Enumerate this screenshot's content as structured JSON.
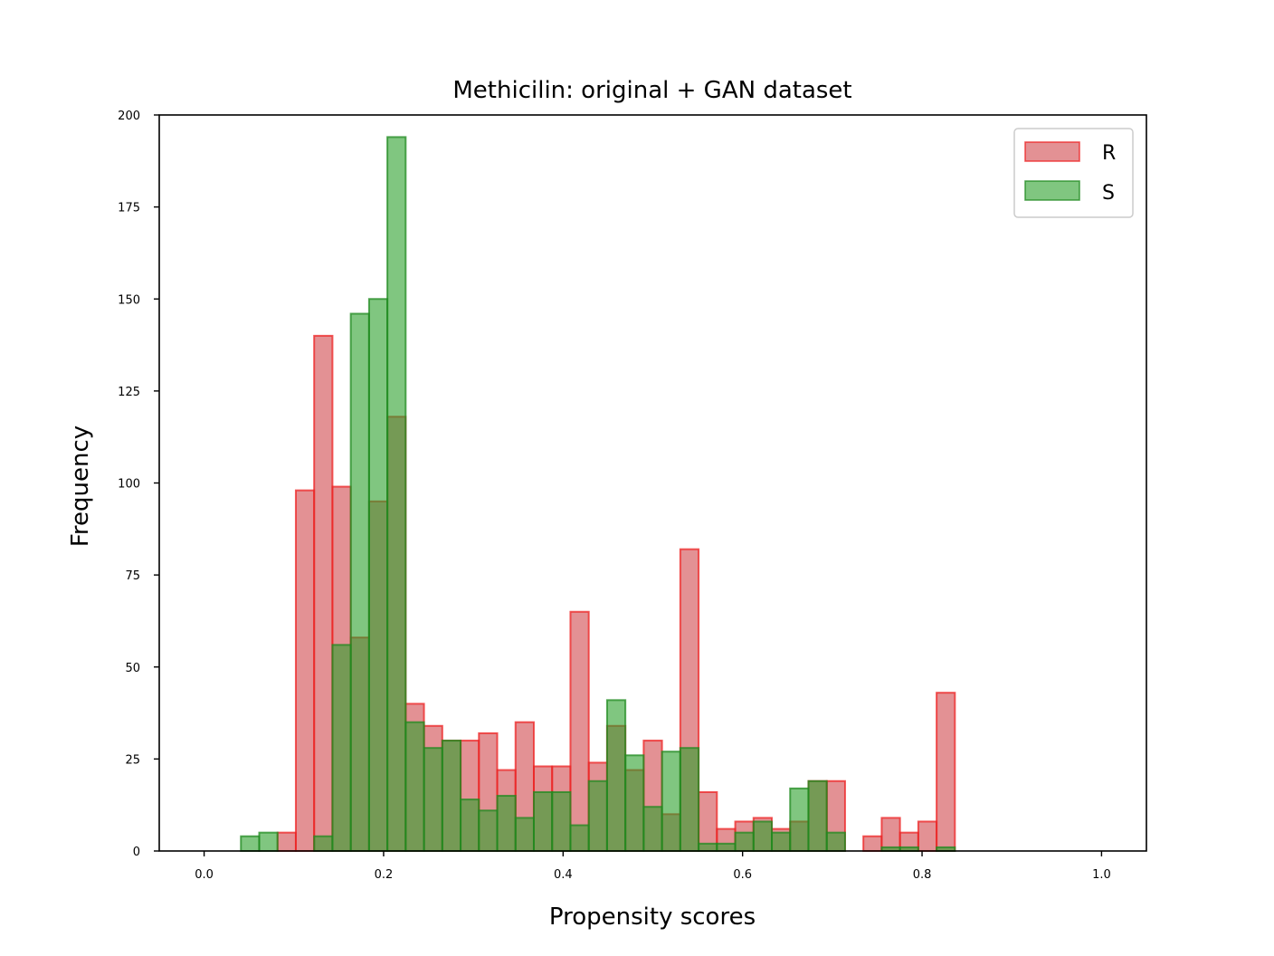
{
  "chart_data": {
    "type": "bar",
    "subtype": "overlapping-histogram",
    "title": "Methicilin: original + GAN dataset",
    "xlabel": "Propensity scores",
    "ylabel": "Frequency",
    "xlim": [
      -0.05,
      1.05
    ],
    "ylim": [
      0,
      200
    ],
    "xticks": [
      0.0,
      0.2,
      0.4,
      0.6,
      0.8,
      1.0
    ],
    "xtick_labels": [
      "0.0",
      "0.2",
      "0.4",
      "0.6",
      "0.8",
      "1.0"
    ],
    "yticks": [
      0,
      25,
      50,
      75,
      100,
      125,
      150,
      175,
      200
    ],
    "ytick_labels": [
      "0",
      "25",
      "50",
      "75",
      "100",
      "125",
      "150",
      "175",
      "200"
    ],
    "grid": false,
    "legend_position": "top-right",
    "bin_start": 0.041,
    "bin_width": 0.0204,
    "series": [
      {
        "name": "R",
        "fill": "#d0484d",
        "stroke": "#ee2222",
        "values": [
          0,
          0,
          5,
          98,
          140,
          99,
          58,
          95,
          118,
          40,
          34,
          30,
          30,
          32,
          22,
          35,
          23,
          23,
          65,
          24,
          34,
          22,
          30,
          10,
          82,
          16,
          6,
          8,
          9,
          6,
          8,
          19,
          19,
          0,
          4,
          9,
          5,
          8,
          43
        ]
      },
      {
        "name": "S",
        "fill": "#2ca02c",
        "stroke": "#1f8a1f",
        "values": [
          4,
          5,
          0,
          0,
          4,
          56,
          146,
          150,
          194,
          35,
          28,
          30,
          14,
          11,
          15,
          9,
          16,
          16,
          7,
          19,
          41,
          26,
          12,
          27,
          28,
          2,
          2,
          5,
          8,
          5,
          17,
          19,
          5,
          0,
          0,
          1,
          1,
          0,
          1
        ]
      }
    ]
  }
}
